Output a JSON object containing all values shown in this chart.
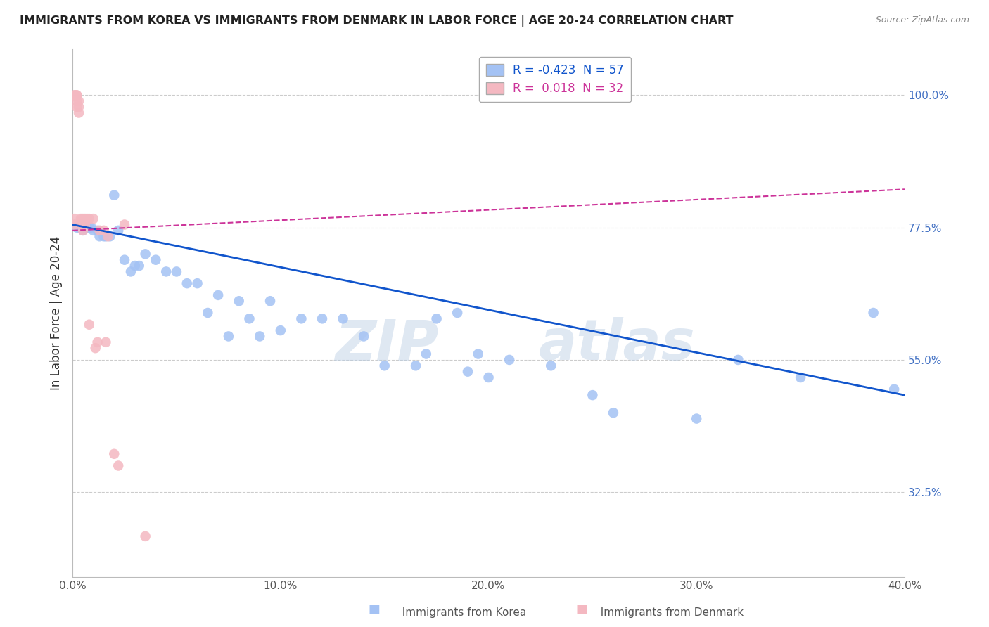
{
  "title": "IMMIGRANTS FROM KOREA VS IMMIGRANTS FROM DENMARK IN LABOR FORCE | AGE 20-24 CORRELATION CHART",
  "source": "Source: ZipAtlas.com",
  "ylabel": "In Labor Force | Age 20-24",
  "xlim": [
    0.0,
    0.4
  ],
  "ylim": [
    0.18,
    1.08
  ],
  "yticks": [
    0.325,
    0.55,
    0.775,
    1.0
  ],
  "ytick_labels": [
    "32.5%",
    "55.0%",
    "77.5%",
    "100.0%"
  ],
  "xticks": [
    0.0,
    0.1,
    0.2,
    0.3,
    0.4
  ],
  "xtick_labels": [
    "0.0%",
    "10.0%",
    "20.0%",
    "30.0%",
    "40.0%"
  ],
  "korea_R": -0.423,
  "korea_N": 57,
  "denmark_R": 0.018,
  "denmark_N": 32,
  "korea_color": "#a4c2f4",
  "denmark_color": "#f4b8c1",
  "korea_line_color": "#1155cc",
  "denmark_line_color": "#cc3399",
  "watermark_color": "#c9daf8",
  "watermark": "ZIPatlas",
  "korea_x": [
    0.002,
    0.003,
    0.004,
    0.005,
    0.005,
    0.006,
    0.006,
    0.007,
    0.008,
    0.009,
    0.01,
    0.012,
    0.013,
    0.015,
    0.016,
    0.018,
    0.02,
    0.022,
    0.025,
    0.028,
    0.03,
    0.032,
    0.035,
    0.04,
    0.045,
    0.05,
    0.055,
    0.06,
    0.065,
    0.07,
    0.075,
    0.08,
    0.085,
    0.09,
    0.095,
    0.1,
    0.11,
    0.12,
    0.13,
    0.14,
    0.15,
    0.165,
    0.175,
    0.185,
    0.195,
    0.21,
    0.23,
    0.17,
    0.19,
    0.2,
    0.25,
    0.26,
    0.3,
    0.32,
    0.35,
    0.385,
    0.395
  ],
  "korea_y": [
    0.775,
    0.775,
    0.78,
    0.775,
    0.77,
    0.775,
    0.775,
    0.775,
    0.775,
    0.775,
    0.77,
    0.77,
    0.76,
    0.76,
    0.76,
    0.76,
    0.83,
    0.77,
    0.72,
    0.7,
    0.71,
    0.71,
    0.73,
    0.72,
    0.7,
    0.7,
    0.68,
    0.68,
    0.63,
    0.66,
    0.59,
    0.65,
    0.62,
    0.59,
    0.65,
    0.6,
    0.62,
    0.62,
    0.62,
    0.59,
    0.54,
    0.54,
    0.62,
    0.63,
    0.56,
    0.55,
    0.54,
    0.56,
    0.53,
    0.52,
    0.49,
    0.46,
    0.45,
    0.55,
    0.52,
    0.63,
    0.5
  ],
  "denmark_x": [
    0.001,
    0.001,
    0.001,
    0.001,
    0.002,
    0.002,
    0.002,
    0.002,
    0.003,
    0.003,
    0.003,
    0.004,
    0.004,
    0.005,
    0.005,
    0.005,
    0.006,
    0.006,
    0.007,
    0.008,
    0.01,
    0.011,
    0.013,
    0.015,
    0.017,
    0.02,
    0.022,
    0.008,
    0.012,
    0.016,
    0.025,
    0.035
  ],
  "denmark_y": [
    0.78,
    0.79,
    1.0,
    1.0,
    1.0,
    1.0,
    0.99,
    0.98,
    0.99,
    0.98,
    0.97,
    0.79,
    0.78,
    0.79,
    0.78,
    0.77,
    0.79,
    0.78,
    0.79,
    0.79,
    0.79,
    0.57,
    0.77,
    0.77,
    0.76,
    0.39,
    0.37,
    0.61,
    0.58,
    0.58,
    0.78,
    0.25
  ]
}
